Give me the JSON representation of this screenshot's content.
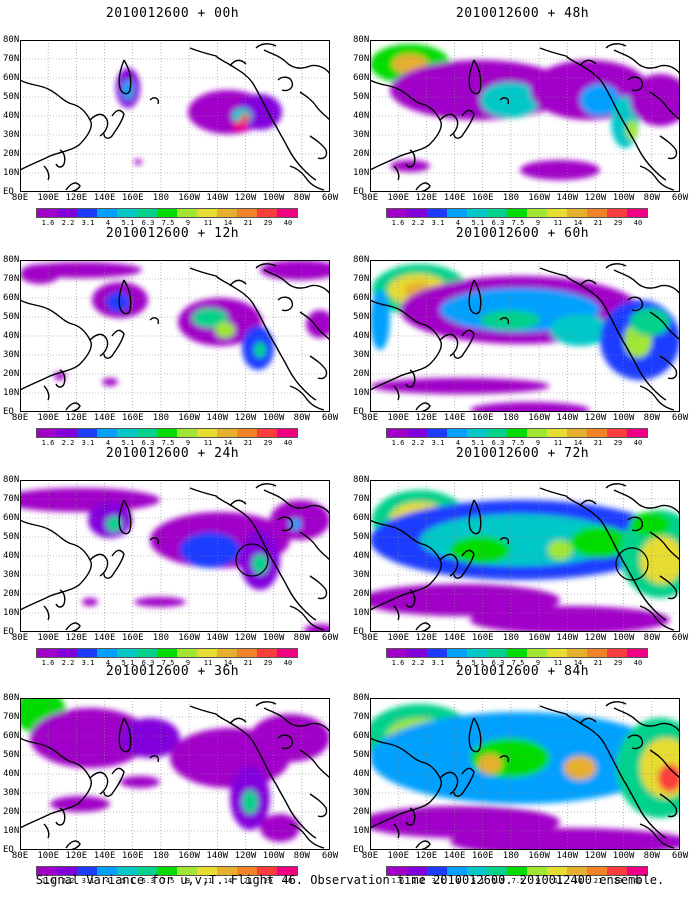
{
  "panels": [
    {
      "title": "2010012600 + 00h",
      "level": 0,
      "box": 0
    },
    {
      "title": "2010012600 + 48h",
      "level": 4,
      "box": 0
    },
    {
      "title": "2010012600 + 12h",
      "level": 1,
      "box": 0
    },
    {
      "title": "2010012600 + 60h",
      "level": 5,
      "box": 0
    },
    {
      "title": "2010012600 + 24h",
      "level": 2,
      "box": 1
    },
    {
      "title": "2010012600 + 72h",
      "level": 6,
      "box": 2
    },
    {
      "title": "2010012600 + 36h",
      "level": 3,
      "box": 0
    },
    {
      "title": "2010012600 + 84h",
      "level": 7,
      "box": 0
    }
  ],
  "lat_labels": [
    "80N",
    "70N",
    "60N",
    "50N",
    "40N",
    "30N",
    "20N",
    "10N",
    "EQ"
  ],
  "lon_labels": [
    "80E",
    "100E",
    "120E",
    "140E",
    "160E",
    "180",
    "160W",
    "140W",
    "120W",
    "100W",
    "80W",
    "60W"
  ],
  "colorbar": {
    "levels": [
      "1.6",
      "2.2",
      "3.1",
      "4",
      "5.1",
      "6.3",
      "7.5",
      "9",
      "11",
      "14",
      "21",
      "29",
      "40"
    ],
    "colors": [
      "#a000c8",
      "#8200dc",
      "#1e3cff",
      "#00a0ff",
      "#00c8c8",
      "#00d28c",
      "#00dc00",
      "#a0e632",
      "#e6dc32",
      "#e6af2d",
      "#f08228",
      "#fa3c3c",
      "#f00082"
    ]
  },
  "caption": "Signal Variance for u,v,T. Flight 46. Observation time 2010012600. 2010012400 ensemble."
}
